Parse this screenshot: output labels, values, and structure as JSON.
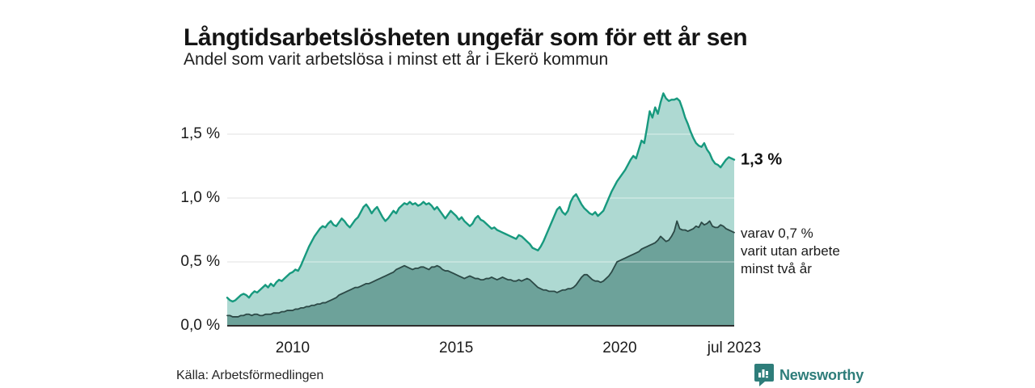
{
  "header": {
    "title": "Långtidsarbetslösheten ungefär som för ett år sen",
    "subtitle": "Andel som varit arbetslösa i minst ett år i Ekerö kommun"
  },
  "chart_data": {
    "type": "area",
    "title": "Långtidsarbetslösheten ungefär som för ett år sen",
    "subtitle": "Andel som varit arbetslösa i minst ett år i Ekerö kommun",
    "unit": "%",
    "x_start_year": 2008,
    "x_interval": "month",
    "x_range": [
      2008.0,
      2023.5
    ],
    "ylim": [
      0,
      1.86
    ],
    "grid": "horizontal",
    "legend_position": "none",
    "y_ticks": {
      "values": [
        1.5,
        1.0,
        0.5,
        0.0
      ],
      "labels": [
        "1,5 %",
        "1,0 %",
        "0,5 %",
        "0,0 %"
      ]
    },
    "x_ticks": {
      "values": [
        2010,
        2015,
        2020,
        2023.5
      ],
      "labels": [
        "2010",
        "2015",
        "2020",
        "jul 2023"
      ]
    },
    "series": [
      {
        "name": "Andel som varit arbetslösa i minst ett år",
        "line_color": "#17997e",
        "fill_color": "#aed9d2",
        "end_value_label": "1,3 %",
        "values": [
          0.22,
          0.2,
          0.19,
          0.2,
          0.22,
          0.24,
          0.25,
          0.24,
          0.22,
          0.25,
          0.27,
          0.26,
          0.28,
          0.3,
          0.32,
          0.3,
          0.33,
          0.31,
          0.34,
          0.36,
          0.35,
          0.37,
          0.39,
          0.41,
          0.42,
          0.44,
          0.43,
          0.47,
          0.52,
          0.57,
          0.62,
          0.66,
          0.7,
          0.73,
          0.76,
          0.78,
          0.77,
          0.8,
          0.82,
          0.79,
          0.78,
          0.81,
          0.84,
          0.82,
          0.79,
          0.77,
          0.8,
          0.83,
          0.85,
          0.89,
          0.93,
          0.95,
          0.92,
          0.88,
          0.91,
          0.93,
          0.89,
          0.85,
          0.82,
          0.84,
          0.87,
          0.9,
          0.88,
          0.92,
          0.94,
          0.96,
          0.95,
          0.97,
          0.95,
          0.96,
          0.94,
          0.95,
          0.97,
          0.95,
          0.96,
          0.94,
          0.91,
          0.93,
          0.9,
          0.87,
          0.84,
          0.87,
          0.9,
          0.88,
          0.86,
          0.83,
          0.85,
          0.82,
          0.8,
          0.78,
          0.8,
          0.84,
          0.86,
          0.83,
          0.82,
          0.8,
          0.78,
          0.76,
          0.77,
          0.75,
          0.74,
          0.73,
          0.72,
          0.71,
          0.7,
          0.69,
          0.68,
          0.71,
          0.7,
          0.68,
          0.66,
          0.64,
          0.61,
          0.6,
          0.59,
          0.62,
          0.66,
          0.71,
          0.76,
          0.81,
          0.86,
          0.91,
          0.93,
          0.89,
          0.87,
          0.9,
          0.97,
          1.01,
          1.03,
          0.99,
          0.95,
          0.92,
          0.9,
          0.88,
          0.87,
          0.89,
          0.86,
          0.88,
          0.9,
          0.95,
          1.0,
          1.05,
          1.09,
          1.13,
          1.16,
          1.19,
          1.22,
          1.26,
          1.3,
          1.33,
          1.31,
          1.38,
          1.45,
          1.43,
          1.55,
          1.68,
          1.63,
          1.71,
          1.66,
          1.75,
          1.82,
          1.78,
          1.76,
          1.77,
          1.77,
          1.78,
          1.76,
          1.7,
          1.63,
          1.58,
          1.52,
          1.47,
          1.43,
          1.41,
          1.4,
          1.43,
          1.38,
          1.35,
          1.3,
          1.27,
          1.26,
          1.24,
          1.27,
          1.3,
          1.32,
          1.31,
          1.3
        ]
      },
      {
        "name": "varav varit utan arbete minst två år",
        "line_color": "#2c4946",
        "fill_color": "#6da29a",
        "end_value_label": "varav 0,7 % varit utan arbete minst två år",
        "values": [
          0.08,
          0.08,
          0.07,
          0.07,
          0.07,
          0.08,
          0.08,
          0.09,
          0.09,
          0.08,
          0.09,
          0.09,
          0.08,
          0.08,
          0.09,
          0.09,
          0.09,
          0.1,
          0.1,
          0.1,
          0.11,
          0.11,
          0.12,
          0.12,
          0.12,
          0.13,
          0.13,
          0.14,
          0.14,
          0.15,
          0.15,
          0.16,
          0.16,
          0.17,
          0.17,
          0.18,
          0.18,
          0.19,
          0.2,
          0.21,
          0.22,
          0.24,
          0.25,
          0.26,
          0.27,
          0.28,
          0.29,
          0.3,
          0.3,
          0.31,
          0.32,
          0.33,
          0.33,
          0.34,
          0.35,
          0.36,
          0.37,
          0.38,
          0.39,
          0.4,
          0.41,
          0.42,
          0.44,
          0.45,
          0.46,
          0.47,
          0.46,
          0.45,
          0.44,
          0.45,
          0.45,
          0.46,
          0.46,
          0.45,
          0.44,
          0.46,
          0.46,
          0.47,
          0.46,
          0.44,
          0.43,
          0.43,
          0.42,
          0.41,
          0.4,
          0.39,
          0.38,
          0.37,
          0.38,
          0.39,
          0.38,
          0.37,
          0.37,
          0.36,
          0.36,
          0.37,
          0.37,
          0.38,
          0.37,
          0.36,
          0.37,
          0.38,
          0.37,
          0.36,
          0.36,
          0.35,
          0.35,
          0.36,
          0.35,
          0.36,
          0.37,
          0.36,
          0.34,
          0.32,
          0.3,
          0.29,
          0.28,
          0.28,
          0.27,
          0.27,
          0.27,
          0.26,
          0.27,
          0.28,
          0.28,
          0.29,
          0.29,
          0.3,
          0.32,
          0.35,
          0.38,
          0.4,
          0.4,
          0.38,
          0.36,
          0.35,
          0.35,
          0.34,
          0.35,
          0.37,
          0.39,
          0.42,
          0.46,
          0.5,
          0.51,
          0.52,
          0.53,
          0.54,
          0.55,
          0.56,
          0.57,
          0.58,
          0.6,
          0.61,
          0.62,
          0.63,
          0.64,
          0.65,
          0.67,
          0.7,
          0.68,
          0.66,
          0.67,
          0.7,
          0.74,
          0.82,
          0.76,
          0.75,
          0.75,
          0.74,
          0.75,
          0.76,
          0.78,
          0.77,
          0.81,
          0.79,
          0.8,
          0.82,
          0.78,
          0.77,
          0.77,
          0.79,
          0.78,
          0.76,
          0.75,
          0.74,
          0.73
        ]
      }
    ],
    "annotations": [
      "1,3 %",
      "varav 0,7 % varit utan arbete minst två år"
    ]
  },
  "axis": {
    "y_labels": [
      "1,5 %",
      "1,0 %",
      "0,5 %",
      "0,0 %"
    ],
    "x_labels": [
      "2010",
      "2015",
      "2020",
      "jul 2023"
    ]
  },
  "annotations": {
    "total": "1,3 %",
    "subset_lines": [
      "varav 0,7 %",
      "varit utan arbete",
      "minst två år"
    ]
  },
  "footer": {
    "source": "Källa: Arbetsförmedlingen",
    "brand": "Newsworthy"
  },
  "colors": {
    "series1_line": "#17997e",
    "series1_fill": "#aed9d2",
    "series2_line": "#2c4946",
    "series2_fill": "#6da29a",
    "gridline": "#e4e4e4",
    "axis_line": "#2f2f2f",
    "brand_teal": "#2e7d7a"
  },
  "icons": {
    "brand_icon": "bar-chart-speech-bubble-icon"
  }
}
